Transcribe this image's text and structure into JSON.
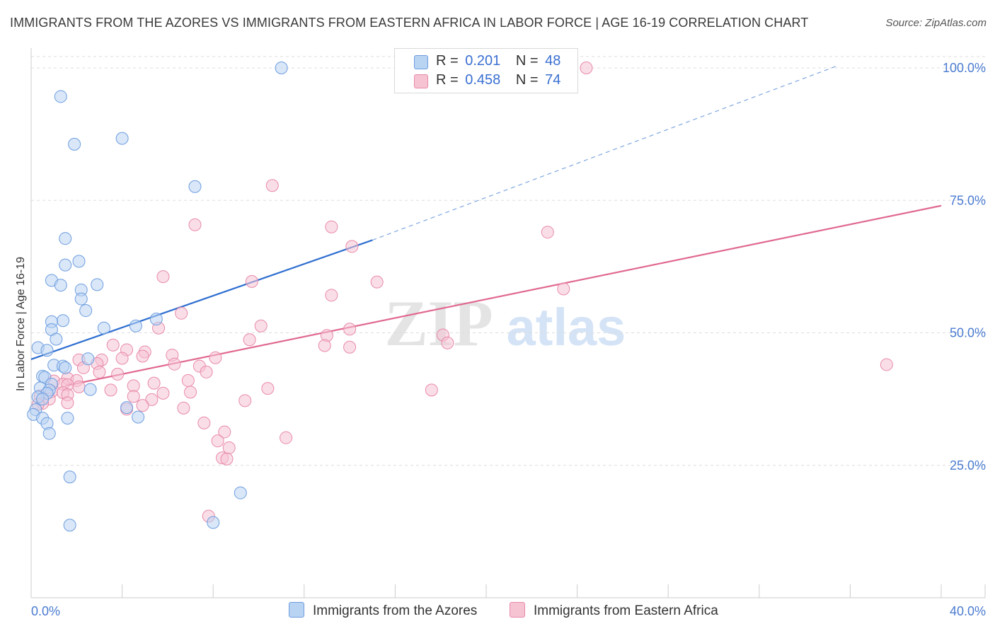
{
  "title": "IMMIGRANTS FROM THE AZORES VS IMMIGRANTS FROM EASTERN AFRICA IN LABOR FORCE | AGE 16-19 CORRELATION CHART",
  "source": "Source: ZipAtlas.com",
  "colors": {
    "blue_fill": "#b9d3f3",
    "blue_stroke": "#6d9de0",
    "blue_line": "#2f6fd0",
    "pink_fill": "#f6c3d3",
    "pink_stroke": "#e88aa8",
    "pink_line": "#e0698f",
    "grid": "#dddddd",
    "axis_text": "#4a7bd0"
  },
  "legend": {
    "rows": [
      {
        "r_label": "R =",
        "r_value": "0.201",
        "n_label": "N =",
        "n_value": "48"
      },
      {
        "r_label": "R =",
        "r_value": "0.458",
        "n_label": "N =",
        "n_value": "74"
      }
    ]
  },
  "bottom_legend": {
    "series1": "Immigrants from the Azores",
    "series2": "Immigrants from Eastern Africa"
  },
  "chart_data": {
    "type": "scatter",
    "ylabel": "In Labor Force | Age 16-19",
    "xlim": [
      0,
      40
    ],
    "ylim": [
      0,
      102
    ],
    "x_tick_labels": [
      "0.0%",
      "40.0%"
    ],
    "y_ticks": [
      {
        "value": 25,
        "label": "25.0%"
      },
      {
        "value": 50,
        "label": "50.0%"
      },
      {
        "value": 75,
        "label": "75.0%"
      },
      {
        "value": 100,
        "label": "100.0%"
      }
    ],
    "grid": "horizontal dashed",
    "watermark": "ZIPatlas",
    "series": [
      {
        "name": "Immigrants from the Azores",
        "color": "blue",
        "trend": {
          "x0": 0.0,
          "y0": 45.0,
          "x1": 15.0,
          "y1": 67.5,
          "dashed_to_x": 35.5,
          "dashed_to_y": 100.5
        },
        "points": [
          [
            11.0,
            100.0
          ],
          [
            1.3,
            94.6
          ],
          [
            1.9,
            85.6
          ],
          [
            4.0,
            86.7
          ],
          [
            7.2,
            77.6
          ],
          [
            1.5,
            67.8
          ],
          [
            2.1,
            63.5
          ],
          [
            1.5,
            62.8
          ],
          [
            0.9,
            59.9
          ],
          [
            1.3,
            59.0
          ],
          [
            2.2,
            58.1
          ],
          [
            2.9,
            59.1
          ],
          [
            2.2,
            56.4
          ],
          [
            2.4,
            54.2
          ],
          [
            1.4,
            52.3
          ],
          [
            0.9,
            52.1
          ],
          [
            3.2,
            50.9
          ],
          [
            0.9,
            50.6
          ],
          [
            4.6,
            51.3
          ],
          [
            5.5,
            52.6
          ],
          [
            1.1,
            48.8
          ],
          [
            0.3,
            47.2
          ],
          [
            0.7,
            46.7
          ],
          [
            2.5,
            45.1
          ],
          [
            1.0,
            43.9
          ],
          [
            1.4,
            43.7
          ],
          [
            1.5,
            43.4
          ],
          [
            0.5,
            41.8
          ],
          [
            0.6,
            41.6
          ],
          [
            0.9,
            40.3
          ],
          [
            0.4,
            39.6
          ],
          [
            0.8,
            39.2
          ],
          [
            2.6,
            39.3
          ],
          [
            0.7,
            38.6
          ],
          [
            0.3,
            37.9
          ],
          [
            0.5,
            37.5
          ],
          [
            0.2,
            35.5
          ],
          [
            0.1,
            34.6
          ],
          [
            0.5,
            33.9
          ],
          [
            0.7,
            32.9
          ],
          [
            1.6,
            33.9
          ],
          [
            4.2,
            35.9
          ],
          [
            4.7,
            34.1
          ],
          [
            0.8,
            31.0
          ],
          [
            1.7,
            22.8
          ],
          [
            9.2,
            19.8
          ],
          [
            1.7,
            13.7
          ],
          [
            8.0,
            14.2
          ]
        ]
      },
      {
        "name": "Immigrants from Eastern Africa",
        "color": "pink",
        "trend": {
          "x0": 1.5,
          "y0": 40.0,
          "x1": 40.0,
          "y1": 74.0
        },
        "points": [
          [
            24.4,
            100.0
          ],
          [
            10.6,
            77.8
          ],
          [
            7.2,
            70.4
          ],
          [
            13.2,
            70.0
          ],
          [
            22.7,
            69.0
          ],
          [
            14.1,
            66.3
          ],
          [
            5.8,
            60.6
          ],
          [
            9.7,
            59.7
          ],
          [
            15.2,
            59.6
          ],
          [
            23.4,
            58.3
          ],
          [
            13.2,
            57.1
          ],
          [
            6.6,
            53.7
          ],
          [
            10.1,
            51.3
          ],
          [
            5.6,
            50.9
          ],
          [
            14.0,
            50.7
          ],
          [
            13.0,
            49.5
          ],
          [
            18.1,
            49.6
          ],
          [
            9.6,
            48.7
          ],
          [
            18.3,
            48.1
          ],
          [
            12.9,
            47.6
          ],
          [
            14.0,
            47.3
          ],
          [
            3.6,
            47.7
          ],
          [
            4.2,
            46.8
          ],
          [
            5.0,
            46.4
          ],
          [
            6.2,
            45.8
          ],
          [
            4.9,
            45.6
          ],
          [
            4.0,
            45.2
          ],
          [
            8.1,
            45.3
          ],
          [
            2.1,
            44.9
          ],
          [
            3.1,
            44.9
          ],
          [
            2.9,
            44.2
          ],
          [
            6.3,
            44.1
          ],
          [
            7.4,
            43.7
          ],
          [
            2.3,
            43.4
          ],
          [
            7.7,
            42.6
          ],
          [
            3.0,
            42.6
          ],
          [
            3.8,
            42.2
          ],
          [
            1.6,
            41.4
          ],
          [
            2.0,
            41.0
          ],
          [
            1.0,
            40.9
          ],
          [
            6.9,
            41.0
          ],
          [
            1.4,
            40.3
          ],
          [
            1.6,
            40.2
          ],
          [
            5.4,
            40.5
          ],
          [
            2.1,
            39.8
          ],
          [
            4.5,
            40.0
          ],
          [
            10.4,
            39.5
          ],
          [
            3.5,
            39.2
          ],
          [
            0.9,
            38.9
          ],
          [
            1.4,
            38.7
          ],
          [
            1.6,
            38.3
          ],
          [
            5.8,
            38.6
          ],
          [
            7.0,
            38.8
          ],
          [
            4.5,
            38.0
          ],
          [
            0.4,
            38.1
          ],
          [
            0.8,
            37.5
          ],
          [
            5.3,
            37.4
          ],
          [
            9.4,
            37.2
          ],
          [
            17.6,
            39.2
          ],
          [
            0.5,
            36.7
          ],
          [
            1.6,
            36.8
          ],
          [
            0.3,
            36.5
          ],
          [
            4.9,
            36.3
          ],
          [
            6.7,
            35.8
          ],
          [
            4.2,
            35.6
          ],
          [
            37.6,
            44.0
          ],
          [
            7.6,
            33.0
          ],
          [
            8.5,
            31.3
          ],
          [
            11.2,
            30.2
          ],
          [
            8.2,
            29.6
          ],
          [
            8.7,
            28.3
          ],
          [
            8.4,
            26.4
          ],
          [
            8.6,
            26.2
          ],
          [
            7.8,
            15.4
          ]
        ]
      }
    ]
  }
}
